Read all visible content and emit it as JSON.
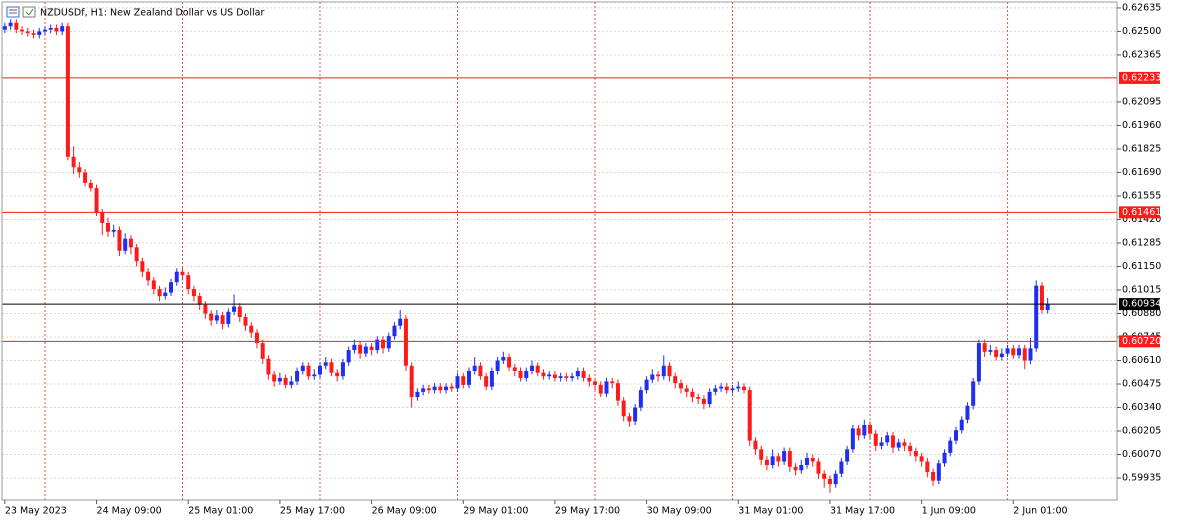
{
  "chart_data": {
    "type": "candlestick",
    "title": "NZDUSDf, H1:  New Zealand Dollar vs US Dollar",
    "up_color": "#1f2ef0",
    "down_color": "#ff1a1a",
    "xlim": [
      -0.5,
      194.1
    ],
    "xticks": [
      {
        "value": 0,
        "label": "23 May 2023"
      },
      {
        "value": 16,
        "label": "24 May 09:00"
      },
      {
        "value": 32,
        "label": "25 May 01:00"
      },
      {
        "value": 48,
        "label": "25 May 17:00"
      },
      {
        "value": 64,
        "label": "26 May 09:00"
      },
      {
        "value": 80,
        "label": "29 May 01:00"
      },
      {
        "value": 96,
        "label": "29 May 17:00"
      },
      {
        "value": 112,
        "label": "30 May 09:00"
      },
      {
        "value": 128,
        "label": "31 May 01:00"
      },
      {
        "value": 144,
        "label": "31 May 17:00"
      },
      {
        "value": 160,
        "label": "1 Jun 09:00"
      },
      {
        "value": 176,
        "label": "2 Jun 01:00"
      }
    ],
    "xgrid": [
      7,
      31,
      55,
      79,
      103,
      127,
      151,
      175
    ],
    "ylim": [
      0.59809,
      0.62669
    ],
    "yticks": [
      0.62635,
      {
        "value": 0.625,
        "label": "0.62500"
      },
      0.62365,
      0.62095,
      {
        "value": 0.6196,
        "label": "0.61960"
      },
      0.61825,
      {
        "value": 0.6169,
        "label": "0.61690"
      },
      0.61555,
      {
        "value": 0.6142,
        "label": "0.61420"
      },
      0.61285,
      {
        "value": 0.6115,
        "label": "0.61150"
      },
      0.61015,
      {
        "value": 0.6088,
        "label": "0.60880"
      },
      0.60745,
      {
        "value": 0.6061,
        "label": "0.60610"
      },
      0.60475,
      {
        "value": 0.6034,
        "label": "0.60340"
      },
      0.60205,
      {
        "value": 0.6007,
        "label": "0.60070"
      },
      0.59935
    ],
    "grid": true,
    "levels": [
      {
        "value": 0.62233,
        "color": "#ff1a1a"
      },
      {
        "value": 0.61461,
        "color": "#ff1a1a"
      },
      {
        "value": {
          "value": 0.6072,
          "label": "0.60720"
        },
        "color": "#ff1a1a"
      }
    ],
    "price_line_color": "#000000",
    "ohlc": [
      [
        0.6251,
        0.6255,
        0.6249,
        0.6253
      ],
      [
        0.6253,
        0.6257,
        0.6251,
        0.6255
      ],
      [
        0.6255,
        0.6257,
        0.6249,
        0.6251
      ],
      [
        0.6251,
        0.6253,
        0.6248,
        0.625
      ],
      [
        0.625,
        0.6252,
        0.6247,
        0.6249
      ],
      [
        0.6249,
        0.6251,
        0.6246,
        0.6248
      ],
      [
        0.6248,
        0.6252,
        0.6246,
        0.625
      ],
      [
        0.625,
        0.6253,
        0.6248,
        0.6251
      ],
      [
        0.6251,
        0.6254,
        0.6249,
        0.6252
      ],
      [
        0.6252,
        0.6254,
        0.6248,
        0.625
      ],
      [
        0.625,
        0.6255,
        0.6248,
        0.6253
      ],
      [
        0.6253,
        0.6255,
        0.6176,
        0.6178
      ],
      [
        0.6178,
        0.6184,
        0.6168,
        0.6172
      ],
      [
        0.6172,
        0.6175,
        0.6166,
        0.6169
      ],
      [
        0.6169,
        0.6171,
        0.6161,
        0.6163
      ],
      [
        0.6163,
        0.6165,
        0.6158,
        0.616
      ],
      [
        0.616,
        0.6162,
        0.6144,
        0.6146
      ],
      [
        0.6146,
        0.6148,
        0.6133,
        0.614
      ],
      [
        0.614,
        0.6143,
        0.6132,
        0.6135
      ],
      [
        0.6135,
        0.6139,
        0.6132,
        0.6136
      ],
      [
        0.6136,
        0.6138,
        0.6121,
        0.6124
      ],
      [
        0.6124,
        0.6134,
        0.6122,
        0.6131
      ],
      [
        0.6131,
        0.6133,
        0.6122,
        0.6126
      ],
      [
        0.6126,
        0.6128,
        0.6115,
        0.6118
      ],
      [
        0.6118,
        0.612,
        0.6109,
        0.6112
      ],
      [
        0.6112,
        0.6114,
        0.6104,
        0.6107
      ],
      [
        0.6107,
        0.6109,
        0.6099,
        0.6102
      ],
      [
        0.6102,
        0.6104,
        0.6095,
        0.6098
      ],
      [
        0.6098,
        0.6103,
        0.6096,
        0.61
      ],
      [
        0.61,
        0.6108,
        0.6098,
        0.6106
      ],
      [
        0.6106,
        0.6114,
        0.6104,
        0.6112
      ],
      [
        0.6112,
        0.6114,
        0.6107,
        0.611
      ],
      [
        0.611,
        0.6112,
        0.6099,
        0.6102
      ],
      [
        0.6102,
        0.6104,
        0.6095,
        0.6098
      ],
      [
        0.6098,
        0.61,
        0.609,
        0.6093
      ],
      [
        0.6093,
        0.6095,
        0.6085,
        0.6088
      ],
      [
        0.6088,
        0.609,
        0.6081,
        0.6084
      ],
      [
        0.6084,
        0.609,
        0.6082,
        0.6087
      ],
      [
        0.6087,
        0.6089,
        0.6079,
        0.6082
      ],
      [
        0.6082,
        0.6091,
        0.608,
        0.6089
      ],
      [
        0.6089,
        0.6099,
        0.6087,
        0.6092
      ],
      [
        0.6092,
        0.6094,
        0.6083,
        0.6086
      ],
      [
        0.6086,
        0.6088,
        0.6078,
        0.6081
      ],
      [
        0.6081,
        0.6083,
        0.6074,
        0.6077
      ],
      [
        0.6077,
        0.6079,
        0.6068,
        0.6071
      ],
      [
        0.6071,
        0.6073,
        0.6059,
        0.6062
      ],
      [
        0.6062,
        0.6064,
        0.605,
        0.6053
      ],
      [
        0.6053,
        0.6055,
        0.6046,
        0.6049
      ],
      [
        0.6049,
        0.6054,
        0.6047,
        0.6051
      ],
      [
        0.6051,
        0.6053,
        0.6045,
        0.6047
      ],
      [
        0.6047,
        0.6052,
        0.6045,
        0.6049
      ],
      [
        0.6049,
        0.6057,
        0.6047,
        0.6055
      ],
      [
        0.6055,
        0.606,
        0.6053,
        0.6058
      ],
      [
        0.6058,
        0.606,
        0.605,
        0.6052
      ],
      [
        0.6052,
        0.6056,
        0.605,
        0.6053
      ],
      [
        0.6053,
        0.606,
        0.6051,
        0.6058
      ],
      [
        0.6058,
        0.6063,
        0.6056,
        0.606
      ],
      [
        0.606,
        0.6062,
        0.6052,
        0.6054
      ],
      [
        0.6054,
        0.6056,
        0.6049,
        0.6052
      ],
      [
        0.6052,
        0.6062,
        0.605,
        0.606
      ],
      [
        0.606,
        0.6069,
        0.6058,
        0.6067
      ],
      [
        0.6067,
        0.6073,
        0.6065,
        0.607
      ],
      [
        0.607,
        0.6072,
        0.6062,
        0.6065
      ],
      [
        0.6065,
        0.6071,
        0.6063,
        0.6069
      ],
      [
        0.6069,
        0.6071,
        0.6064,
        0.6067
      ],
      [
        0.6067,
        0.6075,
        0.6065,
        0.6073
      ],
      [
        0.6073,
        0.6075,
        0.6065,
        0.6068
      ],
      [
        0.6068,
        0.6077,
        0.6066,
        0.6075
      ],
      [
        0.6075,
        0.6083,
        0.6073,
        0.6081
      ],
      [
        0.6081,
        0.609,
        0.6079,
        0.6085
      ],
      [
        0.6085,
        0.6087,
        0.6055,
        0.6058
      ],
      [
        0.6058,
        0.606,
        0.6034,
        0.604
      ],
      [
        0.604,
        0.6045,
        0.6038,
        0.6043
      ],
      [
        0.6043,
        0.6047,
        0.6041,
        0.6045
      ],
      [
        0.6045,
        0.6047,
        0.6042,
        0.6044
      ],
      [
        0.6044,
        0.6048,
        0.6042,
        0.6046
      ],
      [
        0.6046,
        0.6048,
        0.6042,
        0.6044
      ],
      [
        0.6044,
        0.6048,
        0.6042,
        0.6046
      ],
      [
        0.6046,
        0.6048,
        0.6043,
        0.6045
      ],
      [
        0.6045,
        0.6054,
        0.6043,
        0.6052
      ],
      [
        0.6052,
        0.6054,
        0.6045,
        0.6047
      ],
      [
        0.6047,
        0.6057,
        0.6045,
        0.6055
      ],
      [
        0.6055,
        0.6063,
        0.6053,
        0.6058
      ],
      [
        0.6058,
        0.606,
        0.605,
        0.6052
      ],
      [
        0.6052,
        0.6054,
        0.6044,
        0.6046
      ],
      [
        0.6046,
        0.6057,
        0.6044,
        0.6055
      ],
      [
        0.6055,
        0.6063,
        0.6053,
        0.6061
      ],
      [
        0.6061,
        0.6066,
        0.6059,
        0.6063
      ],
      [
        0.6063,
        0.6065,
        0.6055,
        0.6057
      ],
      [
        0.6057,
        0.6059,
        0.6052,
        0.6055
      ],
      [
        0.6055,
        0.6057,
        0.6049,
        0.6051
      ],
      [
        0.6051,
        0.6057,
        0.6049,
        0.6055
      ],
      [
        0.6055,
        0.6061,
        0.6053,
        0.6058
      ],
      [
        0.6058,
        0.606,
        0.6052,
        0.6054
      ],
      [
        0.6054,
        0.6056,
        0.605,
        0.6052
      ],
      [
        0.6052,
        0.6055,
        0.605,
        0.6053
      ],
      [
        0.6053,
        0.6055,
        0.6049,
        0.6051
      ],
      [
        0.6051,
        0.6054,
        0.6049,
        0.6052
      ],
      [
        0.6052,
        0.6054,
        0.6049,
        0.6051
      ],
      [
        0.6051,
        0.6054,
        0.6049,
        0.6052
      ],
      [
        0.6052,
        0.6057,
        0.605,
        0.6055
      ],
      [
        0.6055,
        0.6057,
        0.6049,
        0.6051
      ],
      [
        0.6051,
        0.6053,
        0.6046,
        0.6049
      ],
      [
        0.6049,
        0.6051,
        0.6044,
        0.6047
      ],
      [
        0.6047,
        0.6049,
        0.604,
        0.6042
      ],
      [
        0.6042,
        0.6051,
        0.604,
        0.6049
      ],
      [
        0.6049,
        0.6051,
        0.6045,
        0.6048
      ],
      [
        0.6048,
        0.605,
        0.6035,
        0.6038
      ],
      [
        0.6038,
        0.604,
        0.6026,
        0.6029
      ],
      [
        0.6029,
        0.6031,
        0.6023,
        0.6026
      ],
      [
        0.6026,
        0.6036,
        0.6024,
        0.6034
      ],
      [
        0.6034,
        0.6046,
        0.6032,
        0.6044
      ],
      [
        0.6044,
        0.6052,
        0.6042,
        0.605
      ],
      [
        0.605,
        0.6056,
        0.6048,
        0.6053
      ],
      [
        0.6053,
        0.6055,
        0.6049,
        0.6052
      ],
      [
        0.6052,
        0.6064,
        0.605,
        0.6058
      ],
      [
        0.6058,
        0.606,
        0.6049,
        0.6052
      ],
      [
        0.6052,
        0.6054,
        0.6045,
        0.6048
      ],
      [
        0.6048,
        0.605,
        0.6042,
        0.6045
      ],
      [
        0.6045,
        0.6047,
        0.604,
        0.6043
      ],
      [
        0.6043,
        0.6045,
        0.6037,
        0.604
      ],
      [
        0.604,
        0.6042,
        0.6036,
        0.6039
      ],
      [
        0.6039,
        0.6041,
        0.6033,
        0.6036
      ],
      [
        0.6036,
        0.6045,
        0.6034,
        0.6043
      ],
      [
        0.6043,
        0.6047,
        0.6041,
        0.6045
      ],
      [
        0.6045,
        0.6048,
        0.6043,
        0.6046
      ],
      [
        0.6046,
        0.6048,
        0.6042,
        0.6044
      ],
      [
        0.6044,
        0.6047,
        0.6042,
        0.6045
      ],
      [
        0.6045,
        0.6049,
        0.6043,
        0.6046
      ],
      [
        0.6046,
        0.6048,
        0.6042,
        0.6044
      ],
      [
        0.6044,
        0.6046,
        0.6012,
        0.6015
      ],
      [
        0.6015,
        0.6017,
        0.6007,
        0.601
      ],
      [
        0.601,
        0.6012,
        0.6001,
        0.6004
      ],
      [
        0.6004,
        0.6006,
        0.5998,
        0.6001
      ],
      [
        0.6001,
        0.601,
        0.5999,
        0.6006
      ],
      [
        0.6006,
        0.6008,
        0.6,
        0.6003
      ],
      [
        0.6003,
        0.6011,
        0.6001,
        0.6009
      ],
      [
        0.6009,
        0.6011,
        0.5997,
        0.6
      ],
      [
        0.6,
        0.6002,
        0.5995,
        0.5998
      ],
      [
        0.5998,
        0.6004,
        0.5996,
        0.6001
      ],
      [
        0.6001,
        0.6008,
        0.5999,
        0.6005
      ],
      [
        0.6005,
        0.6007,
        0.6,
        0.6003
      ],
      [
        0.6003,
        0.6005,
        0.5993,
        0.5996
      ],
      [
        0.5996,
        0.5998,
        0.5988,
        0.5993
      ],
      [
        0.5993,
        0.5995,
        0.5985,
        0.599
      ],
      [
        0.599,
        0.5998,
        0.5988,
        0.5996
      ],
      [
        0.5996,
        0.6005,
        0.5994,
        0.6003
      ],
      [
        0.6003,
        0.6012,
        0.6001,
        0.601
      ],
      [
        0.601,
        0.6024,
        0.6008,
        0.6022
      ],
      [
        0.6022,
        0.6024,
        0.6015,
        0.6018
      ],
      [
        0.6018,
        0.6027,
        0.6016,
        0.6024
      ],
      [
        0.6024,
        0.6026,
        0.6016,
        0.6019
      ],
      [
        0.6019,
        0.6021,
        0.6009,
        0.6012
      ],
      [
        0.6012,
        0.6017,
        0.601,
        0.6014
      ],
      [
        0.6014,
        0.602,
        0.6012,
        0.6018
      ],
      [
        0.6018,
        0.602,
        0.6008,
        0.6011
      ],
      [
        0.6011,
        0.6016,
        0.6009,
        0.6014
      ],
      [
        0.6014,
        0.6016,
        0.6009,
        0.6012
      ],
      [
        0.6012,
        0.6014,
        0.6006,
        0.6009
      ],
      [
        0.6009,
        0.6011,
        0.6003,
        0.6006
      ],
      [
        0.6006,
        0.6008,
        0.6,
        0.6003
      ],
      [
        0.6003,
        0.6005,
        0.5994,
        0.5997
      ],
      [
        0.5997,
        0.5999,
        0.5989,
        0.5992
      ],
      [
        0.5992,
        0.6004,
        0.599,
        0.6002
      ],
      [
        0.6002,
        0.601,
        0.6,
        0.6008
      ],
      [
        0.6008,
        0.6017,
        0.6006,
        0.6015
      ],
      [
        0.6015,
        0.6023,
        0.6013,
        0.6021
      ],
      [
        0.6021,
        0.6029,
        0.6019,
        0.6027
      ],
      [
        0.6027,
        0.6037,
        0.6025,
        0.6035
      ],
      [
        0.6035,
        0.6051,
        0.6033,
        0.6049
      ],
      [
        0.6049,
        0.6073,
        0.6047,
        0.6071
      ],
      [
        0.6071,
        0.6073,
        0.6063,
        0.6066
      ],
      [
        0.6066,
        0.607,
        0.6064,
        0.6067
      ],
      [
        0.6067,
        0.6069,
        0.6061,
        0.6063
      ],
      [
        0.6063,
        0.6068,
        0.6061,
        0.6065
      ],
      [
        0.6065,
        0.607,
        0.6063,
        0.6068
      ],
      [
        0.6068,
        0.607,
        0.6062,
        0.6064
      ],
      [
        0.6064,
        0.607,
        0.6062,
        0.6068
      ],
      [
        0.6068,
        0.607,
        0.6056,
        0.6061
      ],
      [
        0.6061,
        0.6074,
        0.6059,
        0.6068
      ],
      [
        0.6068,
        0.6107,
        0.6066,
        0.6104
      ],
      [
        0.6104,
        0.6106,
        0.6088,
        0.609
      ],
      [
        0.609,
        0.6097,
        0.6088,
        0.60934
      ]
    ]
  }
}
